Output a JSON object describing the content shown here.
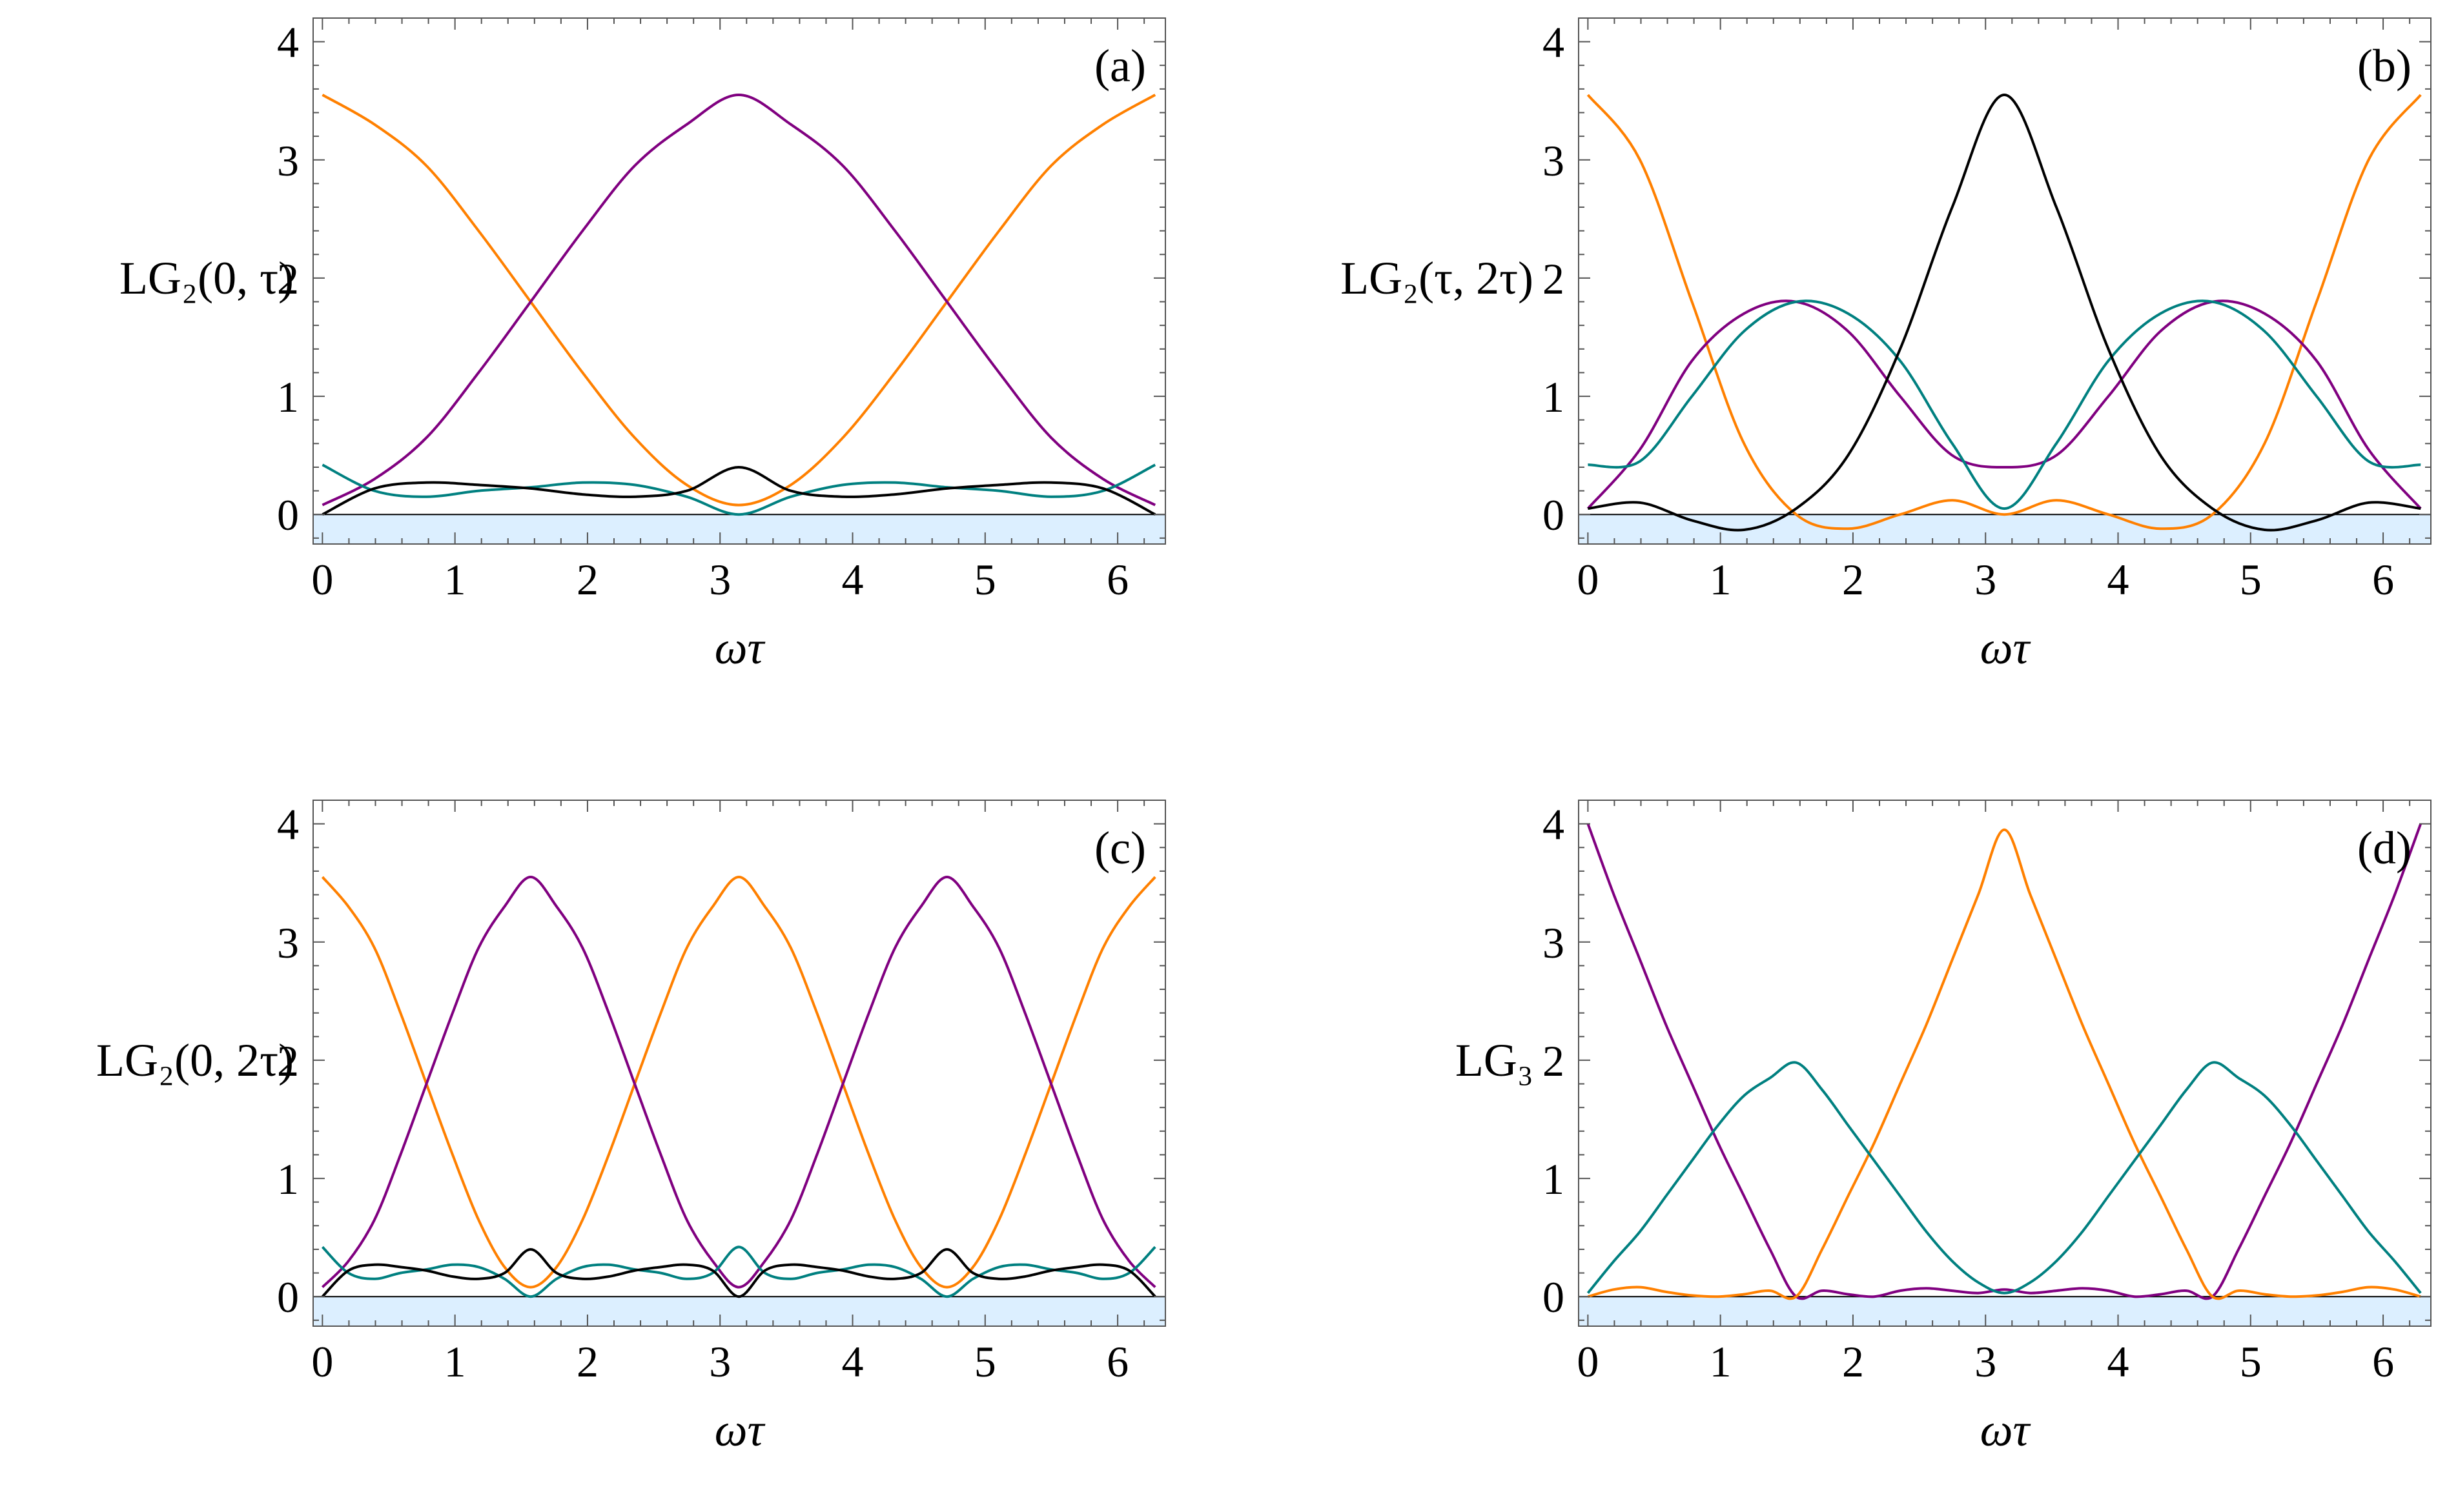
{
  "colors": {
    "orange": "#ff8000",
    "purple": "#800080",
    "teal": "#008080",
    "black": "#000000",
    "negative_band": "#dcefff"
  },
  "chart_data": [
    {
      "type": "line",
      "panel": "(a)",
      "ylabel": "LG₂(0, τ)",
      "xlabel": "ωτ",
      "xlim": [
        -0.07,
        6.36
      ],
      "ylim": [
        -0.25,
        4.2
      ],
      "x_ticks": [
        "0",
        "1",
        "2",
        "3",
        "4",
        "5",
        "6"
      ],
      "y_ticks": [
        "0",
        "1",
        "2",
        "3",
        "4"
      ],
      "negative_region_shaded": true,
      "x": [
        0.0,
        0.393,
        0.785,
        1.178,
        1.571,
        1.963,
        2.356,
        2.749,
        3.142,
        3.534,
        3.927,
        4.32,
        4.712,
        5.105,
        5.498,
        5.89,
        6.283
      ],
      "series": [
        {
          "name": "orange",
          "color": "orange",
          "values": [
            3.55,
            3.3,
            2.95,
            2.4,
            1.8,
            1.2,
            0.65,
            0.25,
            0.08,
            0.25,
            0.65,
            1.2,
            1.8,
            2.4,
            2.95,
            3.3,
            3.55
          ]
        },
        {
          "name": "purple",
          "color": "purple",
          "values": [
            0.08,
            0.3,
            0.65,
            1.2,
            1.8,
            2.4,
            2.95,
            3.3,
            3.55,
            3.3,
            2.95,
            2.4,
            1.8,
            1.2,
            0.65,
            0.3,
            0.08
          ]
        },
        {
          "name": "teal",
          "color": "teal",
          "values": [
            0.42,
            0.2,
            0.15,
            0.2,
            0.23,
            0.27,
            0.25,
            0.15,
            0.0,
            0.15,
            0.25,
            0.27,
            0.23,
            0.2,
            0.15,
            0.2,
            0.42
          ]
        },
        {
          "name": "black",
          "color": "black",
          "values": [
            0.0,
            0.22,
            0.27,
            0.25,
            0.22,
            0.17,
            0.15,
            0.2,
            0.4,
            0.2,
            0.15,
            0.17,
            0.22,
            0.25,
            0.27,
            0.22,
            0.0
          ]
        }
      ]
    },
    {
      "type": "line",
      "panel": "(b)",
      "ylabel": "LG₂(τ, 2τ)",
      "xlabel": "ωτ",
      "xlim": [
        -0.07,
        6.36
      ],
      "ylim": [
        -0.25,
        4.2
      ],
      "x_ticks": [
        "0",
        "1",
        "2",
        "3",
        "4",
        "5",
        "6"
      ],
      "y_ticks": [
        "0",
        "1",
        "2",
        "3",
        "4"
      ],
      "negative_region_shaded": true,
      "x": [
        0.0,
        0.393,
        0.785,
        1.178,
        1.571,
        1.963,
        2.356,
        2.749,
        3.142,
        3.534,
        3.927,
        4.32,
        4.712,
        5.105,
        5.498,
        5.89,
        6.283
      ],
      "series": [
        {
          "name": "orange",
          "color": "orange",
          "values": [
            3.55,
            3.0,
            1.8,
            0.6,
            0.0,
            -0.12,
            0.0,
            0.12,
            0.0,
            0.12,
            0.0,
            -0.12,
            0.0,
            0.6,
            1.8,
            3.0,
            3.55
          ]
        },
        {
          "name": "purple",
          "color": "purple",
          "values": [
            0.05,
            0.55,
            1.3,
            1.7,
            1.8,
            1.55,
            1.0,
            0.5,
            0.4,
            0.5,
            1.0,
            1.55,
            1.8,
            1.7,
            1.3,
            0.55,
            0.05
          ]
        },
        {
          "name": "teal",
          "color": "teal",
          "values": [
            0.42,
            0.45,
            1.0,
            1.55,
            1.8,
            1.7,
            1.3,
            0.6,
            0.05,
            0.6,
            1.3,
            1.7,
            1.8,
            1.55,
            1.0,
            0.45,
            0.42
          ]
        },
        {
          "name": "black",
          "color": "black",
          "values": [
            0.05,
            0.1,
            -0.05,
            -0.13,
            0.05,
            0.5,
            1.4,
            2.6,
            3.55,
            2.6,
            1.4,
            0.5,
            0.05,
            -0.13,
            -0.05,
            0.1,
            0.05
          ]
        }
      ]
    },
    {
      "type": "line",
      "panel": "(c)",
      "ylabel": "LG₂(0, 2τ)",
      "xlabel": "ωτ",
      "xlim": [
        -0.07,
        6.36
      ],
      "ylim": [
        -0.25,
        4.2
      ],
      "x_ticks": [
        "0",
        "1",
        "2",
        "3",
        "4",
        "5",
        "6"
      ],
      "y_ticks": [
        "0",
        "1",
        "2",
        "3",
        "4"
      ],
      "negative_region_shaded": true,
      "x": [
        0.0,
        0.196,
        0.393,
        0.589,
        0.785,
        0.982,
        1.178,
        1.374,
        1.571,
        1.767,
        1.963,
        2.16,
        2.356,
        2.553,
        2.749,
        2.945,
        3.142,
        3.338,
        3.534,
        3.731,
        3.927,
        4.123,
        4.32,
        4.516,
        4.712,
        4.909,
        5.105,
        5.301,
        5.498,
        5.694,
        5.89,
        6.087,
        6.283
      ],
      "series": [
        {
          "name": "orange",
          "color": "orange",
          "values": [
            3.55,
            3.3,
            2.95,
            2.4,
            1.8,
            1.2,
            0.65,
            0.25,
            0.08,
            0.25,
            0.65,
            1.2,
            1.8,
            2.4,
            2.95,
            3.3,
            3.55,
            3.3,
            2.95,
            2.4,
            1.8,
            1.2,
            0.65,
            0.25,
            0.08,
            0.25,
            0.65,
            1.2,
            1.8,
            2.4,
            2.95,
            3.3,
            3.55
          ]
        },
        {
          "name": "purple",
          "color": "purple",
          "values": [
            0.08,
            0.3,
            0.65,
            1.2,
            1.8,
            2.4,
            2.95,
            3.3,
            3.55,
            3.3,
            2.95,
            2.4,
            1.8,
            1.2,
            0.65,
            0.3,
            0.08,
            0.3,
            0.65,
            1.2,
            1.8,
            2.4,
            2.95,
            3.3,
            3.55,
            3.3,
            2.95,
            2.4,
            1.8,
            1.2,
            0.65,
            0.3,
            0.08
          ]
        },
        {
          "name": "teal",
          "color": "teal",
          "values": [
            0.42,
            0.2,
            0.15,
            0.2,
            0.23,
            0.27,
            0.25,
            0.15,
            0.0,
            0.15,
            0.25,
            0.27,
            0.23,
            0.2,
            0.15,
            0.2,
            0.42,
            0.2,
            0.15,
            0.2,
            0.23,
            0.27,
            0.25,
            0.15,
            0.0,
            0.15,
            0.25,
            0.27,
            0.23,
            0.2,
            0.15,
            0.2,
            0.42
          ]
        },
        {
          "name": "black",
          "color": "black",
          "values": [
            0.0,
            0.22,
            0.27,
            0.25,
            0.22,
            0.17,
            0.15,
            0.2,
            0.4,
            0.2,
            0.15,
            0.17,
            0.22,
            0.25,
            0.27,
            0.22,
            0.0,
            0.22,
            0.27,
            0.25,
            0.22,
            0.17,
            0.15,
            0.2,
            0.4,
            0.2,
            0.15,
            0.17,
            0.22,
            0.25,
            0.27,
            0.22,
            0.0
          ]
        }
      ]
    },
    {
      "type": "line",
      "panel": "(d)",
      "ylabel": "LG₃",
      "xlabel": "ωτ",
      "xlim": [
        -0.07,
        6.36
      ],
      "ylim": [
        -0.25,
        4.2
      ],
      "x_ticks": [
        "0",
        "1",
        "2",
        "3",
        "4",
        "5",
        "6"
      ],
      "y_ticks": [
        "0",
        "1",
        "2",
        "3",
        "4"
      ],
      "negative_region_shaded": true,
      "x": [
        0.0,
        0.196,
        0.393,
        0.589,
        0.785,
        0.982,
        1.178,
        1.374,
        1.571,
        1.767,
        1.963,
        2.16,
        2.356,
        2.553,
        2.749,
        2.945,
        3.142,
        3.338,
        3.534,
        3.731,
        3.927,
        4.123,
        4.32,
        4.516,
        4.712,
        4.909,
        5.105,
        5.301,
        5.498,
        5.694,
        5.89,
        6.087,
        6.283
      ],
      "series": [
        {
          "name": "purple",
          "color": "purple",
          "values": [
            4.0,
            3.4,
            2.85,
            2.3,
            1.8,
            1.3,
            0.85,
            0.4,
            0.0,
            0.05,
            0.02,
            0.0,
            0.05,
            0.07,
            0.05,
            0.03,
            0.06,
            0.03,
            0.05,
            0.07,
            0.05,
            0.0,
            0.02,
            0.05,
            0.0,
            0.4,
            0.85,
            1.3,
            1.8,
            2.3,
            2.85,
            3.4,
            4.0
          ]
        },
        {
          "name": "orange",
          "color": "orange",
          "values": [
            0.0,
            0.06,
            0.08,
            0.04,
            0.01,
            0.0,
            0.02,
            0.05,
            0.0,
            0.4,
            0.85,
            1.3,
            1.8,
            2.3,
            2.85,
            3.4,
            3.95,
            3.4,
            2.85,
            2.3,
            1.8,
            1.3,
            0.85,
            0.4,
            0.0,
            0.05,
            0.02,
            0.0,
            0.01,
            0.04,
            0.08,
            0.06,
            0.0
          ]
        },
        {
          "name": "teal",
          "color": "teal",
          "values": [
            0.03,
            0.3,
            0.55,
            0.85,
            1.15,
            1.45,
            1.7,
            1.85,
            1.98,
            1.75,
            1.45,
            1.15,
            0.85,
            0.55,
            0.3,
            0.12,
            0.03,
            0.12,
            0.3,
            0.55,
            0.85,
            1.15,
            1.45,
            1.75,
            1.98,
            1.85,
            1.7,
            1.45,
            1.15,
            0.85,
            0.55,
            0.3,
            0.03
          ]
        }
      ]
    }
  ]
}
